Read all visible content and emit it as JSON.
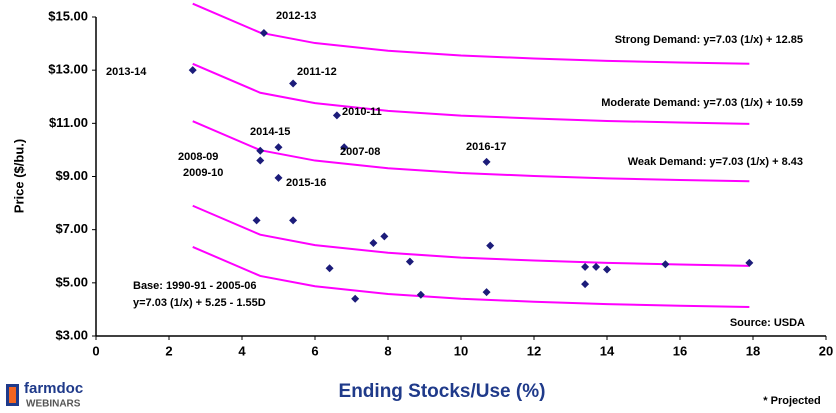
{
  "chart_data": {
    "type": "scatter",
    "ylabel": "Price ($/bu.)",
    "xlabel": "Ending Stocks/Use (%)",
    "color": "#1c1c7a",
    "x": [
      2.65,
      4.6,
      5.4,
      6.6,
      4.5,
      4.5,
      5.0,
      6.8,
      5.0,
      10.7,
      4.4,
      5.4,
      6.4,
      7.6,
      7.9,
      7.1,
      8.6,
      8.9,
      10.7,
      10.8,
      13.4,
      13.4,
      13.7,
      14.0,
      15.6,
      17.9
    ],
    "values": [
      13.0,
      14.4,
      12.5,
      11.3,
      9.97,
      9.6,
      10.1,
      10.1,
      8.95,
      9.55,
      7.35,
      7.35,
      5.55,
      6.5,
      6.75,
      4.4,
      5.8,
      4.55,
      4.65,
      6.4,
      5.6,
      4.95,
      5.6,
      5.5,
      5.7,
      5.75
    ],
    "point_labels": [
      "2013-14",
      "2012-13",
      "2011-12",
      "2010-11",
      "2014-15",
      "2008-09",
      "2009-10",
      "2007-08",
      "2015-16",
      "2016-17",
      null,
      null,
      null,
      null,
      null,
      null,
      null,
      null,
      null,
      null,
      null,
      null,
      null,
      null,
      null,
      null
    ],
    "curve_color": "#ff00ff",
    "curves": [
      {
        "name": "Strong Demand: y=7.03 (1/x) + 12.85",
        "x": [
          2.65,
          4.5,
          6,
          8,
          10,
          12,
          14,
          16,
          17.9
        ],
        "values": [
          15.5,
          14.41,
          14.02,
          13.73,
          13.55,
          13.44,
          13.35,
          13.29,
          13.24
        ]
      },
      {
        "name": "Moderate Demand: y=7.03 (1/x) + 10.59",
        "x": [
          2.65,
          4.5,
          6,
          8,
          10,
          12,
          14,
          16,
          17.9
        ],
        "values": [
          13.24,
          12.15,
          11.76,
          11.47,
          11.29,
          11.18,
          11.09,
          11.03,
          10.98
        ]
      },
      {
        "name": "Weak Demand: y=7.03 (1/x) + 8.43",
        "x": [
          2.65,
          4.5,
          6,
          8,
          10,
          12,
          14,
          16,
          17.9
        ],
        "values": [
          11.08,
          9.99,
          9.6,
          9.31,
          9.13,
          9.02,
          8.93,
          8.87,
          8.82
        ]
      },
      {
        "x": [
          2.65,
          4.5,
          6,
          8,
          10,
          12,
          14,
          16,
          17.9
        ],
        "values": [
          7.9,
          6.81,
          6.42,
          6.13,
          5.95,
          5.84,
          5.75,
          5.69,
          5.64
        ]
      },
      {
        "x": [
          2.65,
          4.5,
          6,
          8,
          10,
          12,
          14,
          16,
          17.9
        ],
        "values": [
          6.35,
          5.26,
          4.87,
          4.58,
          4.4,
          4.29,
          4.2,
          4.14,
          4.09
        ]
      }
    ],
    "base_label": [
      "Base: 1990-91 - 2005-06",
      "y=7.03 (1/x) + 5.25 - 1.55D"
    ],
    "source": "Source: USDA",
    "footnote": "* Projected",
    "logo": [
      "farmdoc",
      "WEBINARS"
    ],
    "xlim": [
      0,
      20
    ],
    "xticks": [
      0,
      2,
      4,
      6,
      8,
      10,
      12,
      14,
      16,
      18,
      20
    ],
    "ylim": [
      3,
      15
    ],
    "yticks": [
      {
        "value": 3,
        "label": "$3.00"
      },
      {
        "value": 5,
        "label": "$5.00"
      },
      {
        "value": 7,
        "label": "$7.00"
      },
      {
        "value": 9,
        "label": "$9.00"
      },
      {
        "value": 11,
        "label": "$11.00"
      },
      {
        "value": 13,
        "label": "$13.00"
      },
      {
        "value": 15,
        "label": "$15.00"
      }
    ]
  }
}
